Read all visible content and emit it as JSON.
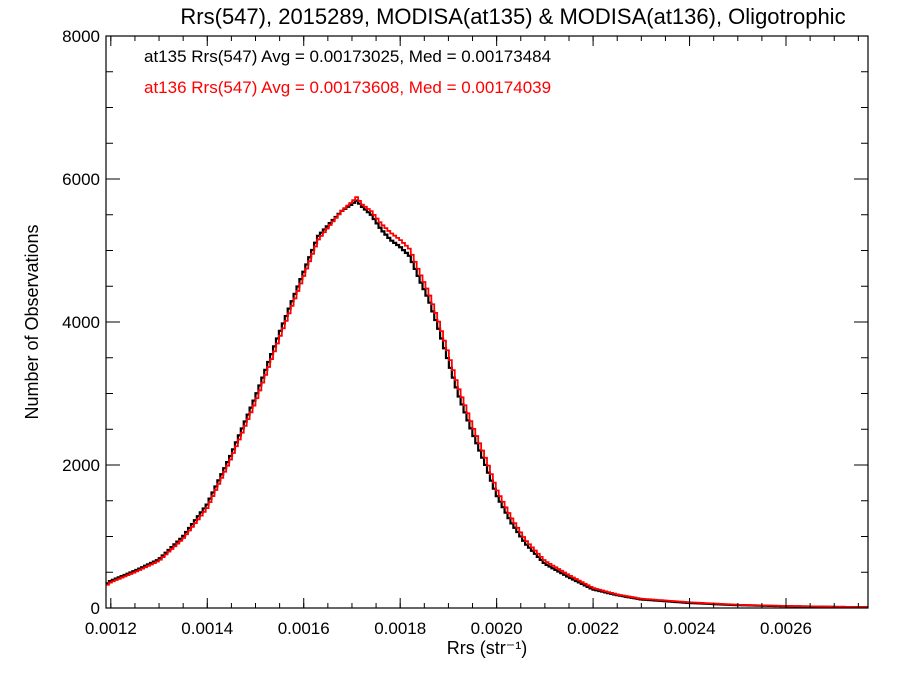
{
  "chart_data": {
    "type": "line",
    "title": "Rrs(547), 2015289, MODISA(at135) & MODISA(at136), Oligotrophic",
    "xlabel": "Rrs (str⁻¹)",
    "ylabel": "Number of Observations",
    "xlim": [
      0.00119,
      0.00277
    ],
    "ylim": [
      0,
      8000
    ],
    "xticks": [
      "0.0012",
      "0.0014",
      "0.0016",
      "0.0018",
      "0.0020",
      "0.0022",
      "0.0024",
      "0.0026"
    ],
    "xtick_values": [
      0.0012,
      0.0014,
      0.0016,
      0.0018,
      0.002,
      0.0022,
      0.0024,
      0.0026
    ],
    "yticks": [
      "0",
      "2000",
      "4000",
      "6000",
      "8000"
    ],
    "ytick_values": [
      0,
      2000,
      4000,
      6000,
      8000
    ],
    "grid": false,
    "legend_position": "top-left",
    "series": [
      {
        "color": "#000000",
        "label": "at135 Rrs(547) Avg = 0.00173025, Med = 0.00173484",
        "x": [
          0.00119,
          0.0012,
          0.00125,
          0.0013,
          0.00135,
          0.0014,
          0.00145,
          0.0015,
          0.00155,
          0.0016,
          0.00163,
          0.00166,
          0.00168,
          0.0017,
          0.00171,
          0.00172,
          0.00174,
          0.00176,
          0.00178,
          0.0018,
          0.00182,
          0.00184,
          0.00186,
          0.00188,
          0.0019,
          0.00192,
          0.00195,
          0.00198,
          0.002,
          0.00203,
          0.00206,
          0.0021,
          0.00215,
          0.0022,
          0.00225,
          0.0023,
          0.0024,
          0.0025,
          0.0026,
          0.0027,
          0.00277
        ],
        "y": [
          330,
          380,
          520,
          680,
          1000,
          1450,
          2150,
          2950,
          3850,
          4700,
          5200,
          5420,
          5560,
          5650,
          5700,
          5620,
          5500,
          5300,
          5150,
          5050,
          4920,
          4600,
          4300,
          3900,
          3450,
          3000,
          2450,
          1950,
          1580,
          1200,
          900,
          620,
          430,
          260,
          180,
          120,
          70,
          40,
          25,
          15,
          10
        ]
      },
      {
        "color": "#ff0000",
        "label": "at136 Rrs(547) Avg = 0.00173608, Med = 0.00174039",
        "x": [
          0.00119,
          0.0012,
          0.00125,
          0.0013,
          0.00135,
          0.0014,
          0.00145,
          0.0015,
          0.00155,
          0.0016,
          0.00163,
          0.00166,
          0.00168,
          0.0017,
          0.00171,
          0.00172,
          0.00174,
          0.00176,
          0.00178,
          0.0018,
          0.00182,
          0.00184,
          0.00186,
          0.00188,
          0.0019,
          0.00192,
          0.00195,
          0.00198,
          0.002,
          0.00203,
          0.00206,
          0.0021,
          0.00215,
          0.0022,
          0.00225,
          0.0023,
          0.0024,
          0.0025,
          0.0026,
          0.0027,
          0.00277
        ],
        "y": [
          310,
          360,
          500,
          660,
          970,
          1400,
          2100,
          2880,
          3780,
          4640,
          5150,
          5400,
          5560,
          5680,
          5750,
          5650,
          5550,
          5380,
          5250,
          5150,
          5020,
          4700,
          4400,
          4000,
          3560,
          3100,
          2550,
          2050,
          1660,
          1270,
          950,
          660,
          460,
          280,
          190,
          130,
          80,
          45,
          28,
          18,
          12
        ]
      }
    ]
  }
}
